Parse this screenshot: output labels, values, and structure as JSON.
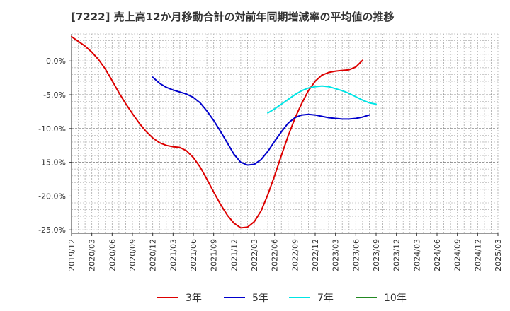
{
  "chart_data": {
    "type": "line",
    "title": "[7222]  売上高12か月移動合計の対前年同期増減率の平均値の推移",
    "x_ticks": [
      "2019/12",
      "2020/03",
      "2020/06",
      "2020/09",
      "2020/12",
      "2021/03",
      "2021/06",
      "2021/09",
      "2021/12",
      "2022/03",
      "2022/06",
      "2022/09",
      "2022/12",
      "2023/03",
      "2023/06",
      "2023/09",
      "2023/12",
      "2024/03",
      "2024/06",
      "2024/09",
      "2024/12",
      "2025/03"
    ],
    "y_ticks": [
      0,
      -5,
      -10,
      -15,
      -20,
      -25
    ],
    "y_tick_labels": [
      "0.0%",
      "-5.0%",
      "-10.0%",
      "-15.0%",
      "-20.0%",
      "-25.0%"
    ],
    "ylim": [
      -25.5,
      4.0
    ],
    "grid": true,
    "legend_position": "bottom",
    "series": [
      {
        "name": "3年",
        "color": "#dd0000",
        "start_index": 0,
        "values": [
          3.6,
          2.9,
          2.2,
          1.3,
          0.2,
          -1.2,
          -2.9,
          -4.7,
          -6.3,
          -7.8,
          -9.2,
          -10.4,
          -11.4,
          -12.1,
          -12.5,
          -12.7,
          -12.8,
          -13.3,
          -14.3,
          -15.7,
          -17.5,
          -19.4,
          -21.2,
          -22.8,
          -24.0,
          -24.7,
          -24.6,
          -23.8,
          -22.2,
          -19.8,
          -17.0,
          -14.0,
          -11.1,
          -8.5,
          -6.3,
          -4.4,
          -3.0,
          -2.1,
          -1.7,
          -1.5,
          -1.4,
          -1.3,
          -0.9,
          0.1
        ]
      },
      {
        "name": "5年",
        "color": "#0000cc",
        "start_index": 12,
        "values": [
          -2.4,
          -3.3,
          -3.9,
          -4.3,
          -4.6,
          -4.9,
          -5.4,
          -6.2,
          -7.4,
          -8.8,
          -10.4,
          -12.1,
          -13.8,
          -15.0,
          -15.4,
          -15.3,
          -14.6,
          -13.4,
          -11.9,
          -10.5,
          -9.2,
          -8.4,
          -8.0,
          -7.9,
          -8.0,
          -8.2,
          -8.4,
          -8.5,
          -8.6,
          -8.6,
          -8.5,
          -8.3,
          -8.0
        ]
      },
      {
        "name": "7年",
        "color": "#00e5e5",
        "start_index": 29,
        "values": [
          -7.7,
          -7.1,
          -6.4,
          -5.7,
          -5.0,
          -4.4,
          -4.0,
          -3.8,
          -3.7,
          -3.8,
          -4.1,
          -4.4,
          -4.8,
          -5.3,
          -5.8,
          -6.2,
          -6.4
        ]
      },
      {
        "name": "10年",
        "color": "#228822",
        "start_index": 0,
        "values": []
      }
    ]
  }
}
